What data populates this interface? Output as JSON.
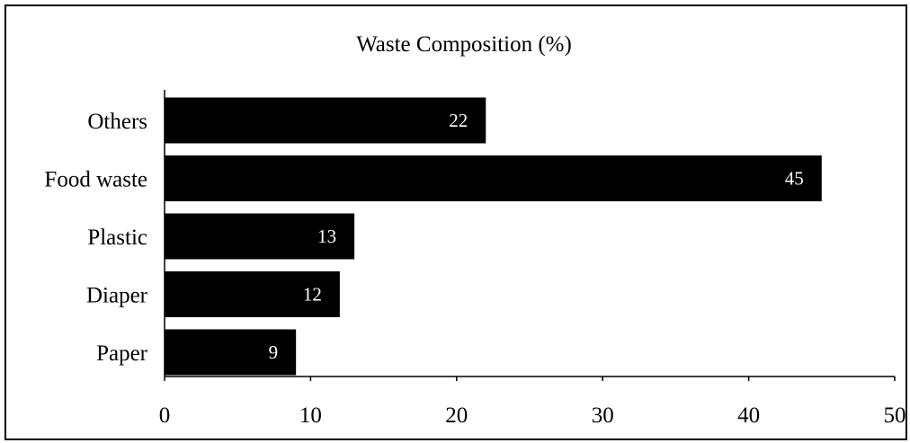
{
  "chart_data": {
    "type": "bar",
    "orientation": "horizontal",
    "title": "Waste Composition (%)",
    "xlabel": "",
    "ylabel": "",
    "categories": [
      "Others",
      "Food waste",
      "Plastic",
      "Diaper",
      "Paper"
    ],
    "values": [
      22,
      45,
      13,
      12,
      9
    ],
    "xlim": [
      0,
      50
    ],
    "x_ticks": [
      0,
      10,
      20,
      30,
      40,
      50
    ],
    "grid": false,
    "legend": "none",
    "bar_color": "#000000",
    "label_color": "#ffffff"
  }
}
